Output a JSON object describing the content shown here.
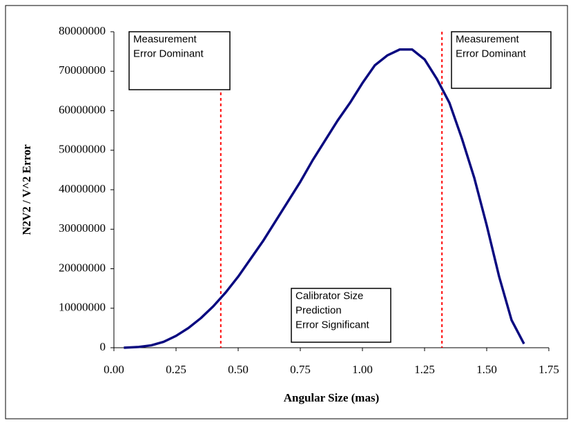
{
  "chart_data": {
    "type": "line",
    "xlabel": "Angular Size (mas)",
    "ylabel": "N2V2 / V^2 Error",
    "x": [
      0.04,
      0.1,
      0.15,
      0.2,
      0.25,
      0.3,
      0.35,
      0.4,
      0.45,
      0.5,
      0.55,
      0.6,
      0.65,
      0.7,
      0.75,
      0.8,
      0.85,
      0.9,
      0.95,
      1.0,
      1.05,
      1.1,
      1.15,
      1.2,
      1.25,
      1.3,
      1.35,
      1.4,
      1.45,
      1.5,
      1.55,
      1.6,
      1.65
    ],
    "series": [
      {
        "color": "#0a0a80",
        "values": [
          0,
          200000,
          600000,
          1500000,
          3000000,
          5000000,
          7500000,
          10500000,
          14000000,
          18000000,
          22500000,
          27000000,
          32000000,
          37000000,
          42000000,
          47500000,
          52500000,
          57500000,
          62000000,
          67000000,
          71500000,
          74000000,
          75500000,
          75500000,
          73000000,
          68000000,
          62000000,
          53000000,
          43000000,
          31000000,
          18000000,
          7000000,
          1000000
        ]
      }
    ],
    "xlim": [
      0,
      1.75
    ],
    "xticks": [
      {
        "value": 0,
        "label": "0.00"
      },
      {
        "value": 0.25,
        "label": "0.25"
      },
      {
        "value": 0.5,
        "label": "0.50"
      },
      {
        "value": 0.75,
        "label": "0.75"
      },
      {
        "value": 1,
        "label": "1.00"
      },
      {
        "value": 1.25,
        "label": "1.25"
      },
      {
        "value": 1.5,
        "label": "1.50"
      },
      {
        "value": 1.75,
        "label": "1.75"
      }
    ],
    "ylim": [
      0,
      80000000
    ],
    "yticks": [
      0,
      10000000,
      20000000,
      30000000,
      40000000,
      50000000,
      60000000,
      70000000,
      80000000
    ],
    "grid": false,
    "vlines": {
      "color": "#ff0000",
      "values": [
        0.43,
        1.32
      ]
    },
    "annotations": [
      {
        "lines": [
          "Measurement",
          "Error Dominant"
        ]
      },
      {
        "lines": [
          "Measurement",
          "Error Dominant"
        ]
      },
      {
        "lines": [
          "Calibrator Size",
          "Prediction",
          "Error Significant"
        ]
      }
    ]
  }
}
